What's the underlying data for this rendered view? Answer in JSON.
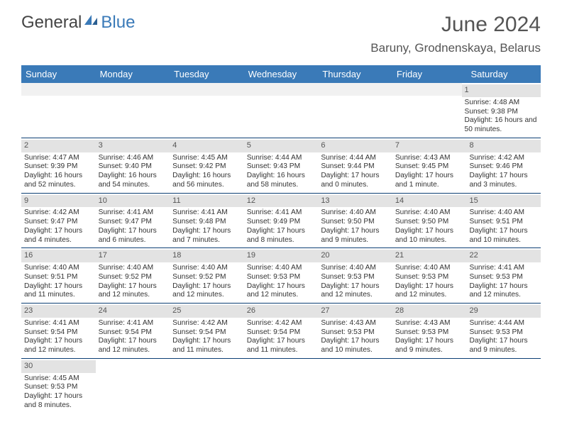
{
  "logo": {
    "general": "General",
    "blue": "Blue"
  },
  "title": "June 2024",
  "location": "Baruny, Grodnenskaya, Belarus",
  "colors": {
    "header_bg": "#3a7ab8",
    "header_text": "#ffffff",
    "numbar_bg": "#e3e3e3",
    "row_border": "#0c3f74",
    "title_color": "#555555",
    "text_color": "#333333"
  },
  "day_headers": [
    "Sunday",
    "Monday",
    "Tuesday",
    "Wednesday",
    "Thursday",
    "Friday",
    "Saturday"
  ],
  "weeks": [
    [
      {
        "blank": true
      },
      {
        "blank": true
      },
      {
        "blank": true
      },
      {
        "blank": true
      },
      {
        "blank": true
      },
      {
        "blank": true
      },
      {
        "num": "1",
        "sunrise": "Sunrise: 4:48 AM",
        "sunset": "Sunset: 9:38 PM",
        "daylight": "Daylight: 16 hours and 50 minutes."
      }
    ],
    [
      {
        "num": "2",
        "sunrise": "Sunrise: 4:47 AM",
        "sunset": "Sunset: 9:39 PM",
        "daylight": "Daylight: 16 hours and 52 minutes."
      },
      {
        "num": "3",
        "sunrise": "Sunrise: 4:46 AM",
        "sunset": "Sunset: 9:40 PM",
        "daylight": "Daylight: 16 hours and 54 minutes."
      },
      {
        "num": "4",
        "sunrise": "Sunrise: 4:45 AM",
        "sunset": "Sunset: 9:42 PM",
        "daylight": "Daylight: 16 hours and 56 minutes."
      },
      {
        "num": "5",
        "sunrise": "Sunrise: 4:44 AM",
        "sunset": "Sunset: 9:43 PM",
        "daylight": "Daylight: 16 hours and 58 minutes."
      },
      {
        "num": "6",
        "sunrise": "Sunrise: 4:44 AM",
        "sunset": "Sunset: 9:44 PM",
        "daylight": "Daylight: 17 hours and 0 minutes."
      },
      {
        "num": "7",
        "sunrise": "Sunrise: 4:43 AM",
        "sunset": "Sunset: 9:45 PM",
        "daylight": "Daylight: 17 hours and 1 minute."
      },
      {
        "num": "8",
        "sunrise": "Sunrise: 4:42 AM",
        "sunset": "Sunset: 9:46 PM",
        "daylight": "Daylight: 17 hours and 3 minutes."
      }
    ],
    [
      {
        "num": "9",
        "sunrise": "Sunrise: 4:42 AM",
        "sunset": "Sunset: 9:47 PM",
        "daylight": "Daylight: 17 hours and 4 minutes."
      },
      {
        "num": "10",
        "sunrise": "Sunrise: 4:41 AM",
        "sunset": "Sunset: 9:47 PM",
        "daylight": "Daylight: 17 hours and 6 minutes."
      },
      {
        "num": "11",
        "sunrise": "Sunrise: 4:41 AM",
        "sunset": "Sunset: 9:48 PM",
        "daylight": "Daylight: 17 hours and 7 minutes."
      },
      {
        "num": "12",
        "sunrise": "Sunrise: 4:41 AM",
        "sunset": "Sunset: 9:49 PM",
        "daylight": "Daylight: 17 hours and 8 minutes."
      },
      {
        "num": "13",
        "sunrise": "Sunrise: 4:40 AM",
        "sunset": "Sunset: 9:50 PM",
        "daylight": "Daylight: 17 hours and 9 minutes."
      },
      {
        "num": "14",
        "sunrise": "Sunrise: 4:40 AM",
        "sunset": "Sunset: 9:50 PM",
        "daylight": "Daylight: 17 hours and 10 minutes."
      },
      {
        "num": "15",
        "sunrise": "Sunrise: 4:40 AM",
        "sunset": "Sunset: 9:51 PM",
        "daylight": "Daylight: 17 hours and 10 minutes."
      }
    ],
    [
      {
        "num": "16",
        "sunrise": "Sunrise: 4:40 AM",
        "sunset": "Sunset: 9:51 PM",
        "daylight": "Daylight: 17 hours and 11 minutes."
      },
      {
        "num": "17",
        "sunrise": "Sunrise: 4:40 AM",
        "sunset": "Sunset: 9:52 PM",
        "daylight": "Daylight: 17 hours and 12 minutes."
      },
      {
        "num": "18",
        "sunrise": "Sunrise: 4:40 AM",
        "sunset": "Sunset: 9:52 PM",
        "daylight": "Daylight: 17 hours and 12 minutes."
      },
      {
        "num": "19",
        "sunrise": "Sunrise: 4:40 AM",
        "sunset": "Sunset: 9:53 PM",
        "daylight": "Daylight: 17 hours and 12 minutes."
      },
      {
        "num": "20",
        "sunrise": "Sunrise: 4:40 AM",
        "sunset": "Sunset: 9:53 PM",
        "daylight": "Daylight: 17 hours and 12 minutes."
      },
      {
        "num": "21",
        "sunrise": "Sunrise: 4:40 AM",
        "sunset": "Sunset: 9:53 PM",
        "daylight": "Daylight: 17 hours and 12 minutes."
      },
      {
        "num": "22",
        "sunrise": "Sunrise: 4:41 AM",
        "sunset": "Sunset: 9:53 PM",
        "daylight": "Daylight: 17 hours and 12 minutes."
      }
    ],
    [
      {
        "num": "23",
        "sunrise": "Sunrise: 4:41 AM",
        "sunset": "Sunset: 9:54 PM",
        "daylight": "Daylight: 17 hours and 12 minutes."
      },
      {
        "num": "24",
        "sunrise": "Sunrise: 4:41 AM",
        "sunset": "Sunset: 9:54 PM",
        "daylight": "Daylight: 17 hours and 12 minutes."
      },
      {
        "num": "25",
        "sunrise": "Sunrise: 4:42 AM",
        "sunset": "Sunset: 9:54 PM",
        "daylight": "Daylight: 17 hours and 11 minutes."
      },
      {
        "num": "26",
        "sunrise": "Sunrise: 4:42 AM",
        "sunset": "Sunset: 9:54 PM",
        "daylight": "Daylight: 17 hours and 11 minutes."
      },
      {
        "num": "27",
        "sunrise": "Sunrise: 4:43 AM",
        "sunset": "Sunset: 9:53 PM",
        "daylight": "Daylight: 17 hours and 10 minutes."
      },
      {
        "num": "28",
        "sunrise": "Sunrise: 4:43 AM",
        "sunset": "Sunset: 9:53 PM",
        "daylight": "Daylight: 17 hours and 9 minutes."
      },
      {
        "num": "29",
        "sunrise": "Sunrise: 4:44 AM",
        "sunset": "Sunset: 9:53 PM",
        "daylight": "Daylight: 17 hours and 9 minutes."
      }
    ],
    [
      {
        "num": "30",
        "sunrise": "Sunrise: 4:45 AM",
        "sunset": "Sunset: 9:53 PM",
        "daylight": "Daylight: 17 hours and 8 minutes."
      },
      {
        "blank": true
      },
      {
        "blank": true
      },
      {
        "blank": true
      },
      {
        "blank": true
      },
      {
        "blank": true
      },
      {
        "blank": true
      }
    ]
  ]
}
